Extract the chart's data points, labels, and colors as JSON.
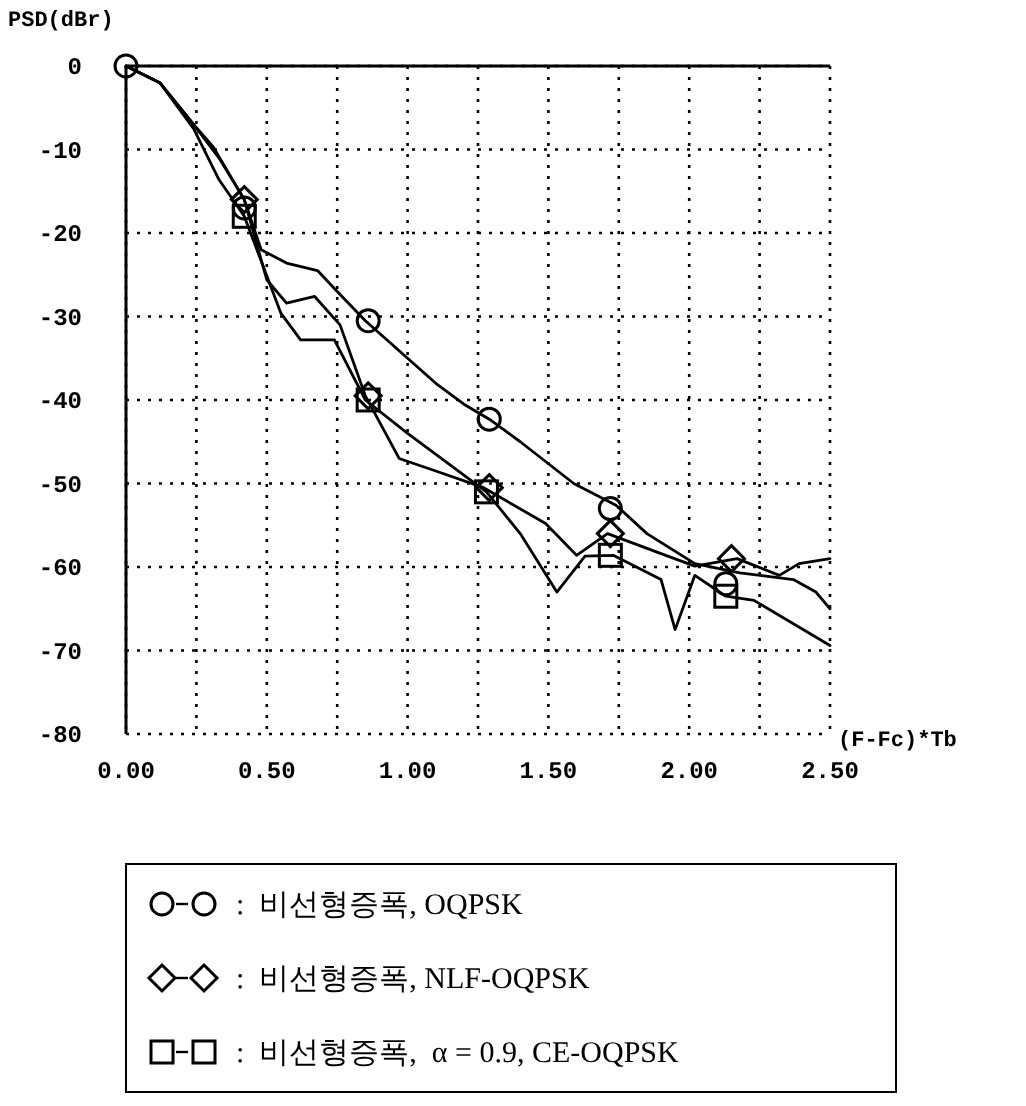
{
  "chart_data": {
    "type": "line",
    "xlabel": "(F-Fc)*Tb",
    "ylabel": "PSD(dBr)",
    "xlim": [
      0,
      2.5
    ],
    "ylim": [
      -80,
      0
    ],
    "xticks": [
      {
        "value": 0,
        "label": "0.00"
      },
      {
        "value": 0.25,
        "label": null
      },
      {
        "value": 0.5,
        "label": "0.50"
      },
      {
        "value": 0.75,
        "label": null
      },
      {
        "value": 1,
        "label": "1.00"
      },
      {
        "value": 1.25,
        "label": null
      },
      {
        "value": 1.5,
        "label": "1.50"
      },
      {
        "value": 1.75,
        "label": null
      },
      {
        "value": 2,
        "label": "2.00"
      },
      {
        "value": 2.25,
        "label": null
      },
      {
        "value": 2.5,
        "label": "2.50"
      }
    ],
    "yticks": [
      0,
      -10,
      -20,
      -30,
      -40,
      -50,
      -60,
      -70,
      -80
    ],
    "grid": true,
    "legend": "bottom",
    "line_style": "solid",
    "series": [
      {
        "color": "#000000",
        "marker": "none",
        "x": [
          0,
          0.12,
          0.24,
          0.33,
          0.42,
          0.48,
          0.57,
          0.68,
          0.75,
          0.85,
          1.0,
          1.1,
          1.2,
          1.29,
          1.4,
          1.59,
          1.74,
          1.85,
          2.02,
          2.18,
          2.37,
          2.45,
          2.5
        ],
        "values": [
          0,
          -2,
          -7,
          -11,
          -16,
          -22,
          -23.6,
          -24.5,
          -27,
          -30.5,
          -35,
          -38,
          -40.5,
          -42.3,
          -45,
          -50,
          -52.6,
          -56,
          -59.6,
          -60.7,
          -61.5,
          -63,
          -65
        ]
      },
      {
        "color": "#000000",
        "marker": "none",
        "x": [
          0,
          0.12,
          0.24,
          0.31,
          0.42,
          0.5,
          0.57,
          0.67,
          0.76,
          0.85,
          0.97,
          1.1,
          1.27,
          1.49,
          1.6,
          1.71,
          1.9,
          2.02,
          2.17,
          2.32,
          2.39,
          2.5
        ],
        "values": [
          0,
          -2,
          -7,
          -9.7,
          -16,
          -25.6,
          -28.4,
          -27.6,
          -31,
          -39.5,
          -47,
          -48.5,
          -50.5,
          -54.8,
          -58.6,
          -56,
          -58.4,
          -59.9,
          -59,
          -61,
          -59.6,
          -59
        ]
      },
      {
        "color": "#000000",
        "marker": "none",
        "x": [
          0,
          0.12,
          0.24,
          0.33,
          0.42,
          0.55,
          0.62,
          0.74,
          0.85,
          1.0,
          1.28,
          1.4,
          1.53,
          1.63,
          1.73,
          1.9,
          1.95,
          2.02,
          2.13,
          2.23,
          2.5
        ],
        "values": [
          0,
          -2,
          -7.5,
          -13.6,
          -18,
          -29.6,
          -32.8,
          -32.8,
          -40,
          -44,
          -51,
          -56,
          -63,
          -58.7,
          -58.6,
          -61.5,
          -67.5,
          -61,
          -63.5,
          -64,
          -69.4
        ]
      },
      {
        "type": "scatter",
        "name": ":  비선형증폭, OQPSK",
        "color": "#000000",
        "marker": "circle",
        "x": [
          0,
          0.42,
          0.86,
          1.29,
          1.72,
          2.13
        ],
        "values": [
          0,
          -17,
          -30.5,
          -42.3,
          -53,
          -62
        ]
      },
      {
        "type": "scatter",
        "name": ":  비선형증폭, NLF-OQPSK",
        "color": "#000000",
        "marker": "diamond",
        "x": [
          0.42,
          0.86,
          1.29,
          1.72,
          2.15
        ],
        "values": [
          -16,
          -39.5,
          -50.5,
          -56,
          -59
        ]
      },
      {
        "type": "scatter",
        "name": ":  비선형증폭,  α = 0.9, CE-OQPSK",
        "color": "#000000",
        "marker": "square",
        "x": [
          0.42,
          0.86,
          1.28,
          1.72,
          2.13
        ],
        "values": [
          -18,
          -40,
          -51,
          -58.6,
          -63.5
        ]
      }
    ]
  }
}
